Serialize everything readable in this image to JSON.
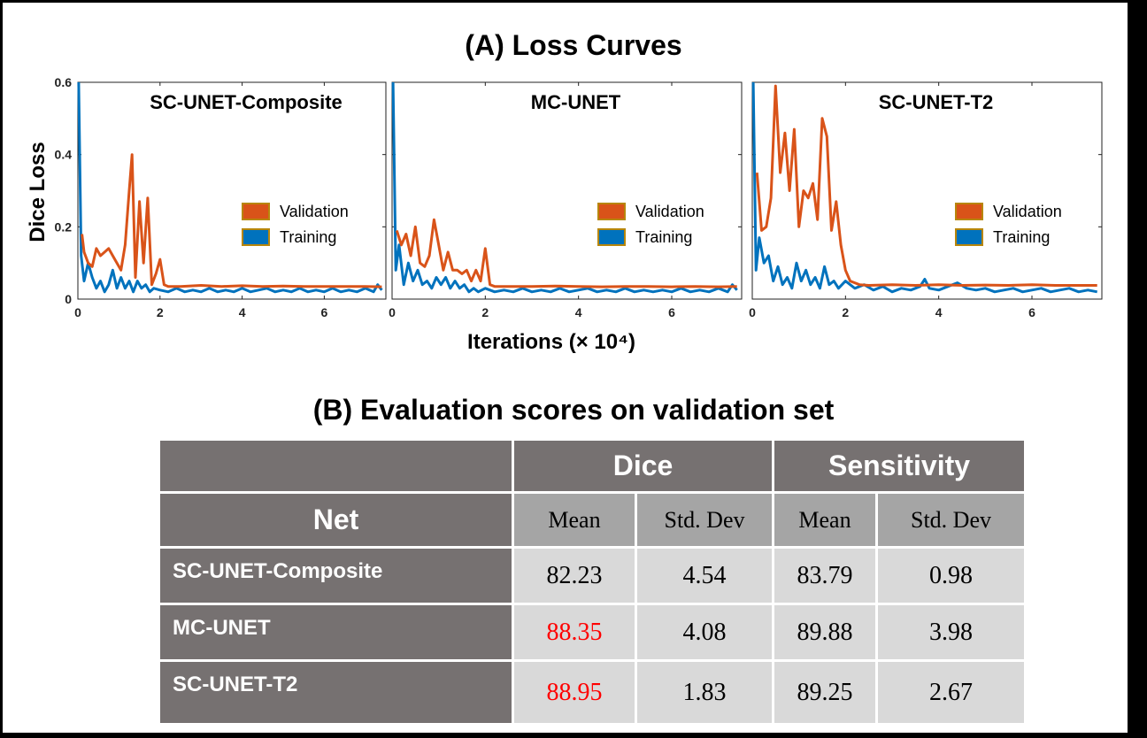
{
  "figure_a_title": "(A) Loss Curves",
  "figure_b_title": "(B) Evaluation scores on validation set",
  "chart_data": [
    {
      "type": "line",
      "title": "SC-UNET-Composite",
      "ylabel": "Dice Loss",
      "xlabel": "Iterations (× 10⁴)",
      "xlim": [
        0,
        7.5
      ],
      "ylim": [
        0,
        0.6
      ],
      "xticks": [
        "0",
        "2",
        "4",
        "6"
      ],
      "yticks": [
        "0",
        "0.2",
        "0.4",
        "0.6"
      ],
      "legend_position": "right",
      "series": [
        {
          "name": "Validation",
          "color": "#d95319",
          "x": [
            0.1,
            0.15,
            0.25,
            0.35,
            0.45,
            0.55,
            0.65,
            0.75,
            0.85,
            0.95,
            1.05,
            1.15,
            1.25,
            1.32,
            1.4,
            1.5,
            1.6,
            1.7,
            1.8,
            1.9,
            2.0,
            2.1,
            2.2,
            2.5,
            3,
            3.5,
            4,
            4.5,
            5,
            5.5,
            6,
            6.5,
            7,
            7.4
          ],
          "y": [
            0.18,
            0.13,
            0.1,
            0.09,
            0.14,
            0.12,
            0.13,
            0.14,
            0.12,
            0.1,
            0.08,
            0.15,
            0.3,
            0.4,
            0.06,
            0.27,
            0.1,
            0.28,
            0.04,
            0.07,
            0.11,
            0.04,
            0.035,
            0.035,
            0.038,
            0.035,
            0.037,
            0.035,
            0.036,
            0.035,
            0.035,
            0.035,
            0.035,
            0.034
          ]
        },
        {
          "name": "Training",
          "color": "#0072bd",
          "x": [
            0.02,
            0.08,
            0.15,
            0.25,
            0.35,
            0.45,
            0.55,
            0.65,
            0.75,
            0.85,
            0.95,
            1.05,
            1.15,
            1.25,
            1.35,
            1.45,
            1.55,
            1.65,
            1.75,
            1.85,
            2.0,
            2.2,
            2.4,
            2.6,
            2.8,
            3.0,
            3.2,
            3.4,
            3.6,
            3.8,
            4.0,
            4.2,
            4.4,
            4.6,
            4.8,
            5.0,
            5.2,
            5.4,
            5.6,
            5.8,
            6.0,
            6.2,
            6.4,
            6.6,
            6.8,
            7.0,
            7.2,
            7.3,
            7.4
          ],
          "y": [
            0.6,
            0.12,
            0.05,
            0.1,
            0.06,
            0.03,
            0.05,
            0.02,
            0.04,
            0.08,
            0.03,
            0.06,
            0.03,
            0.05,
            0.02,
            0.05,
            0.03,
            0.04,
            0.02,
            0.03,
            0.025,
            0.02,
            0.03,
            0.02,
            0.025,
            0.02,
            0.03,
            0.02,
            0.025,
            0.02,
            0.03,
            0.02,
            0.025,
            0.03,
            0.02,
            0.025,
            0.02,
            0.03,
            0.02,
            0.025,
            0.02,
            0.03,
            0.02,
            0.025,
            0.02,
            0.03,
            0.02,
            0.04,
            0.025
          ]
        }
      ]
    },
    {
      "type": "line",
      "title": "MC-UNET",
      "xlim": [
        0,
        7.5
      ],
      "ylim": [
        0,
        0.6
      ],
      "xticks": [
        "0",
        "2",
        "4",
        "6"
      ],
      "legend_position": "right",
      "series": [
        {
          "name": "Validation",
          "color": "#d95319",
          "x": [
            0.1,
            0.2,
            0.3,
            0.4,
            0.5,
            0.6,
            0.7,
            0.8,
            0.9,
            1.0,
            1.1,
            1.2,
            1.3,
            1.4,
            1.5,
            1.6,
            1.7,
            1.8,
            1.9,
            2.0,
            2.1,
            2.2,
            2.5,
            3,
            3.5,
            4,
            4.5,
            5,
            5.5,
            6,
            6.5,
            7,
            7.4
          ],
          "y": [
            0.19,
            0.15,
            0.18,
            0.12,
            0.2,
            0.1,
            0.09,
            0.12,
            0.22,
            0.15,
            0.08,
            0.13,
            0.08,
            0.08,
            0.07,
            0.08,
            0.05,
            0.08,
            0.05,
            0.14,
            0.04,
            0.035,
            0.035,
            0.035,
            0.036,
            0.035,
            0.034,
            0.035,
            0.035,
            0.034,
            0.035,
            0.034,
            0.035
          ]
        },
        {
          "name": "Training",
          "color": "#0072bd",
          "x": [
            0.02,
            0.08,
            0.15,
            0.25,
            0.35,
            0.45,
            0.55,
            0.65,
            0.75,
            0.85,
            0.95,
            1.05,
            1.15,
            1.25,
            1.35,
            1.45,
            1.55,
            1.65,
            1.75,
            1.85,
            2.0,
            2.2,
            2.4,
            2.6,
            2.8,
            3.0,
            3.2,
            3.4,
            3.6,
            3.8,
            4.0,
            4.2,
            4.4,
            4.6,
            4.8,
            5.0,
            5.2,
            5.4,
            5.6,
            5.8,
            6.0,
            6.2,
            6.4,
            6.6,
            6.8,
            7.0,
            7.2,
            7.3,
            7.4
          ],
          "y": [
            0.6,
            0.08,
            0.15,
            0.04,
            0.1,
            0.05,
            0.08,
            0.04,
            0.05,
            0.03,
            0.06,
            0.04,
            0.06,
            0.03,
            0.05,
            0.03,
            0.04,
            0.02,
            0.03,
            0.02,
            0.03,
            0.02,
            0.025,
            0.02,
            0.03,
            0.02,
            0.025,
            0.02,
            0.03,
            0.02,
            0.025,
            0.03,
            0.02,
            0.025,
            0.02,
            0.03,
            0.02,
            0.025,
            0.02,
            0.025,
            0.02,
            0.03,
            0.02,
            0.025,
            0.02,
            0.03,
            0.02,
            0.04,
            0.025
          ]
        }
      ]
    },
    {
      "type": "line",
      "title": "SC-UNET-T2",
      "xlim": [
        0,
        7.5
      ],
      "ylim": [
        0,
        0.6
      ],
      "xticks": [
        "0",
        "2",
        "4",
        "6"
      ],
      "legend_position": "right",
      "series": [
        {
          "name": "Validation",
          "color": "#d95319",
          "x": [
            0.1,
            0.2,
            0.3,
            0.4,
            0.5,
            0.6,
            0.7,
            0.8,
            0.9,
            1.0,
            1.1,
            1.2,
            1.3,
            1.4,
            1.5,
            1.6,
            1.7,
            1.8,
            1.9,
            2.0,
            2.1,
            2.3,
            2.5,
            3,
            3.5,
            4,
            4.5,
            5,
            5.5,
            6,
            6.5,
            7,
            7.4
          ],
          "y": [
            0.35,
            0.19,
            0.2,
            0.28,
            0.59,
            0.35,
            0.46,
            0.3,
            0.47,
            0.2,
            0.3,
            0.28,
            0.32,
            0.22,
            0.5,
            0.45,
            0.19,
            0.27,
            0.15,
            0.08,
            0.05,
            0.04,
            0.038,
            0.04,
            0.038,
            0.04,
            0.038,
            0.039,
            0.038,
            0.04,
            0.038,
            0.038,
            0.038
          ]
        },
        {
          "name": "Training",
          "color": "#0072bd",
          "x": [
            0.02,
            0.08,
            0.15,
            0.25,
            0.35,
            0.45,
            0.55,
            0.65,
            0.75,
            0.85,
            0.95,
            1.05,
            1.15,
            1.25,
            1.35,
            1.45,
            1.55,
            1.65,
            1.75,
            1.85,
            2.0,
            2.2,
            2.4,
            2.6,
            2.8,
            3.0,
            3.2,
            3.4,
            3.6,
            3.7,
            3.8,
            4.0,
            4.2,
            4.4,
            4.6,
            4.8,
            5.0,
            5.2,
            5.4,
            5.6,
            5.8,
            6.0,
            6.2,
            6.4,
            6.6,
            6.8,
            7.0,
            7.2,
            7.4
          ],
          "y": [
            0.6,
            0.08,
            0.17,
            0.1,
            0.12,
            0.05,
            0.09,
            0.04,
            0.06,
            0.03,
            0.1,
            0.05,
            0.08,
            0.04,
            0.06,
            0.03,
            0.09,
            0.04,
            0.05,
            0.03,
            0.05,
            0.03,
            0.04,
            0.025,
            0.035,
            0.02,
            0.03,
            0.025,
            0.035,
            0.055,
            0.03,
            0.025,
            0.035,
            0.045,
            0.03,
            0.025,
            0.03,
            0.02,
            0.025,
            0.03,
            0.02,
            0.025,
            0.03,
            0.02,
            0.025,
            0.03,
            0.02,
            0.025,
            0.02
          ]
        }
      ]
    },
    {
      "type": "table",
      "title": "(B) Evaluation scores on validation set",
      "group_headers": [
        "",
        "Dice",
        "Sensitivity"
      ],
      "net_label": "Net",
      "columns": [
        "Mean",
        "Std. Dev",
        "Mean",
        "Std. Dev"
      ],
      "rows": [
        {
          "net": "SC-UNET-Composite",
          "dice_mean": "82.23",
          "dice_std": "4.54",
          "sens_mean": "83.79",
          "sens_std": "0.98",
          "dice_highlight": false
        },
        {
          "net": "MC-UNET",
          "dice_mean": "88.35",
          "dice_std": "4.08",
          "sens_mean": "89.88",
          "sens_std": "3.98",
          "dice_highlight": true
        },
        {
          "net": "SC-UNET-T2",
          "dice_mean": "88.95",
          "dice_std": "1.83",
          "sens_mean": "89.25",
          "sens_std": "2.67",
          "dice_highlight": true
        }
      ],
      "highlight_color": "#ff0000"
    }
  ]
}
